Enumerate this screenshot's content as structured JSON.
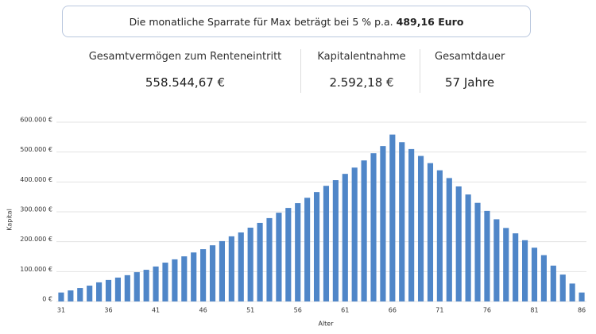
{
  "banner": {
    "text": "Die monatliche Sparrate für Max beträgt bei 5 % p.a.",
    "highlight": "489,16 Euro"
  },
  "stats": [
    {
      "label": "Gesamtvermögen zum Renteneintritt",
      "value": "558.544,67 €"
    },
    {
      "label": "Kapitalentnahme",
      "value": "2.592,18 €"
    },
    {
      "label": "Gesamtdauer",
      "value": "57 Jahre"
    }
  ],
  "chart_data": {
    "type": "bar",
    "x_label": "Alter",
    "y_label": "Kapital",
    "color": "#4f86c8",
    "grid": true,
    "x": [
      31,
      32,
      33,
      34,
      35,
      36,
      37,
      38,
      39,
      40,
      41,
      42,
      43,
      44,
      45,
      46,
      47,
      48,
      49,
      50,
      51,
      52,
      53,
      54,
      55,
      56,
      57,
      58,
      59,
      60,
      61,
      62,
      63,
      64,
      65,
      66,
      67,
      68,
      69,
      70,
      71,
      72,
      73,
      74,
      75,
      76,
      77,
      78,
      79,
      80,
      81,
      82,
      83,
      84,
      85,
      86
    ],
    "values": [
      30000,
      37000,
      45000,
      53000,
      64000,
      72000,
      80000,
      88000,
      98000,
      106000,
      117000,
      130000,
      141000,
      151000,
      164000,
      175000,
      188000,
      202000,
      218000,
      231000,
      247000,
      263000,
      279000,
      297000,
      313000,
      329000,
      347000,
      366000,
      387000,
      406000,
      427000,
      448000,
      472000,
      496000,
      520000,
      558545,
      533000,
      510000,
      487000,
      463000,
      439000,
      413000,
      385000,
      358000,
      330000,
      303000,
      275000,
      246000,
      228000,
      205000,
      180000,
      155000,
      120000,
      90000,
      60000,
      30000
    ],
    "xlim": [
      30.5,
      86.5
    ],
    "xticks": [
      31,
      36,
      41,
      46,
      51,
      56,
      61,
      66,
      71,
      76,
      81,
      86
    ],
    "ylim": [
      0,
      600000
    ],
    "yticks": [
      {
        "value": 0,
        "label": "0 €"
      },
      {
        "value": 100000,
        "label": "100.000 €"
      },
      {
        "value": 200000,
        "label": "200.000 €"
      },
      {
        "value": 300000,
        "label": "300.000 €"
      },
      {
        "value": 400000,
        "label": "400.000 €"
      },
      {
        "value": 500000,
        "label": "500.000 €"
      },
      {
        "value": 600000,
        "label": "600.000 €"
      }
    ]
  }
}
